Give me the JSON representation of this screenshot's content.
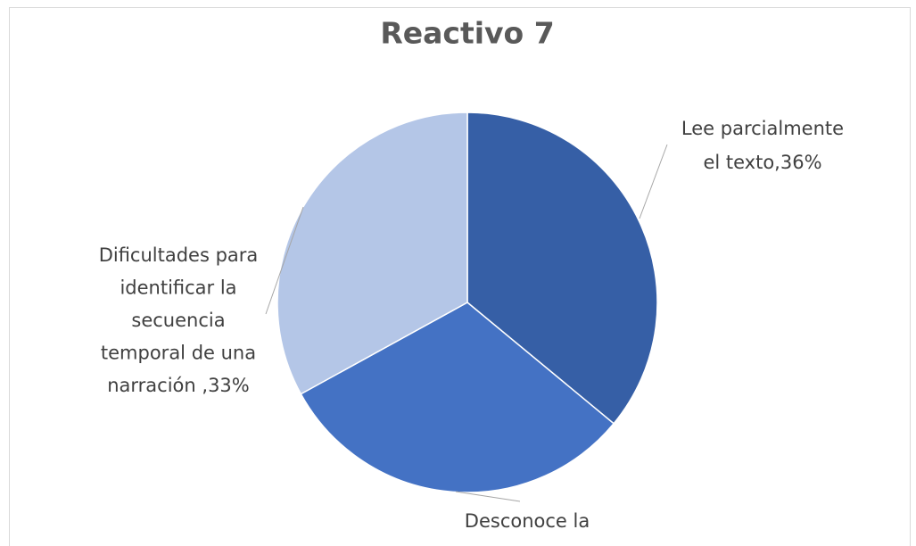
{
  "chart_data": {
    "type": "pie",
    "title": "Reactivo 7",
    "values": [
      36,
      31,
      33
    ],
    "value_labels": [
      [
        "Lee parcialmente",
        "el texto,36%"
      ],
      [
        "Desconoce la"
      ],
      [
        "Dificultades para",
        "identificar la",
        "secuencia",
        "temporal de una",
        "narración ,33%"
      ]
    ],
    "colors": [
      "#365fa6",
      "#4472c4",
      "#b4c6e7"
    ]
  }
}
